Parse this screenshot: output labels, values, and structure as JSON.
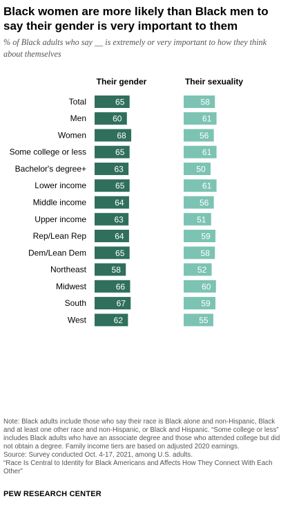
{
  "title": "Black women are more likely than Black men to say their gender is very important to them",
  "subtitle": "% of Black adults who say __ is extremely or very important to how they think about themselves",
  "colors": {
    "gender": "#2f6f5c",
    "sexuality": "#7cc3b3",
    "value_text": "#ffffff"
  },
  "chart_data": {
    "type": "bar",
    "orientation": "horizontal",
    "categories": [
      "Total",
      "Men",
      "Women",
      "Some college or less",
      "Bachelor's degree+",
      "Lower income",
      "Middle income",
      "Upper income",
      "Rep/Lean Rep",
      "Dem/Lean Dem",
      "Northeast",
      "Midwest",
      "South",
      "West"
    ],
    "groups": [
      [
        0
      ],
      [
        1,
        2
      ],
      [
        3,
        4
      ],
      [
        5,
        6,
        7
      ],
      [
        8,
        9
      ],
      [
        10,
        11,
        12,
        13
      ]
    ],
    "series": [
      {
        "name": "Their gender",
        "values": [
          65,
          60,
          68,
          65,
          63,
          65,
          64,
          63,
          64,
          65,
          58,
          66,
          67,
          62
        ]
      },
      {
        "name": "Their sexuality",
        "values": [
          58,
          61,
          56,
          61,
          50,
          61,
          56,
          51,
          59,
          58,
          52,
          60,
          59,
          55
        ]
      }
    ],
    "xlim": [
      0,
      100
    ],
    "data_labels": true,
    "grid": false,
    "legend": "column headers at top"
  },
  "notes": [
    "Note: Black adults include those who say their race is Black alone and non-Hispanic, Black and at least one other race and non-Hispanic, or Black and Hispanic. “Some college or less” includes Black adults who have an associate degree and those who attended college but did not obtain a degree. Family income tiers are based on adjusted 2020 earnings.",
    "Source: Survey conducted Oct. 4-17, 2021, among U.S. adults.",
    "“Race Is Central to Identity for Black Americans and Affects How They Connect With Each Other”"
  ],
  "org": "PEW RESEARCH CENTER"
}
